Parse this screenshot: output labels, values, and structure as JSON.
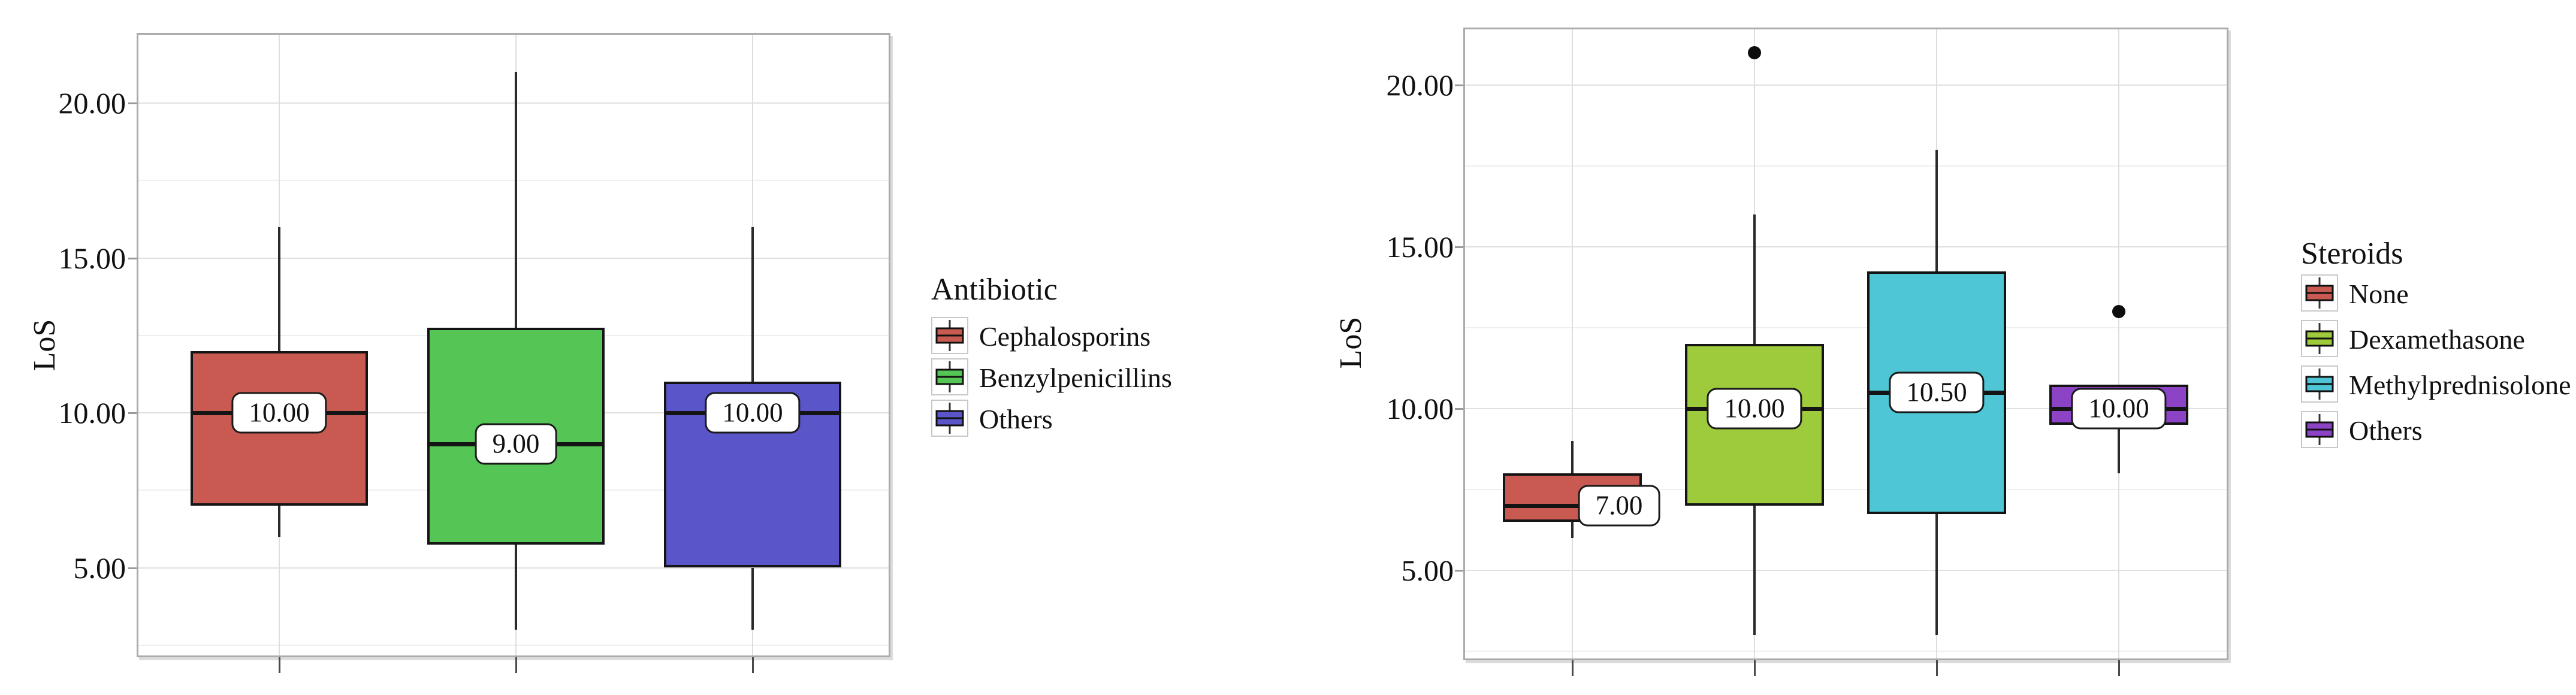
{
  "page": {
    "background": "#ffffff"
  },
  "chart_data": [
    {
      "type": "box",
      "id": "antibiotic",
      "title": "",
      "xlabel": "",
      "ylabel": "LoS",
      "ylim": [
        2.1,
        22.3
      ],
      "yticks": [
        5,
        10,
        15,
        20
      ],
      "ytick_labels": [
        "5.00",
        "10.00",
        "15.00",
        "20.00"
      ],
      "minor_grid_step": 2.5,
      "grid": true,
      "legend": {
        "title": "Antibiotic",
        "position": "right"
      },
      "categories": [
        "Cephalosporins",
        "Benzylpenicillins",
        "Others"
      ],
      "series": [
        {
          "name": "Cephalosporins",
          "color": "#c85a51",
          "whisker_low": 6,
          "q1": 7,
          "median": 10,
          "q3": 12,
          "whisker_high": 16,
          "outliers": [],
          "median_label": "10.00",
          "label_offset_x": 0
        },
        {
          "name": "Benzylpenicillins",
          "color": "#55c556",
          "whisker_low": 3,
          "q1": 5.75,
          "median": 9,
          "q3": 12.75,
          "whisker_high": 21,
          "outliers": [],
          "median_label": "9.00",
          "label_offset_x": 0
        },
        {
          "name": "Others",
          "color": "#5a55c8",
          "whisker_low": 3,
          "q1": 5,
          "median": 10,
          "q3": 11,
          "whisker_high": 16,
          "outliers": [],
          "median_label": "10.00",
          "label_offset_x": 0
        }
      ]
    },
    {
      "type": "box",
      "id": "steroids",
      "title": "",
      "xlabel": "",
      "ylabel": "LoS",
      "ylim": [
        2.2,
        21.9
      ],
      "yticks": [
        5,
        10,
        15,
        20
      ],
      "ytick_labels": [
        "5.00",
        "10.00",
        "15.00",
        "20.00"
      ],
      "minor_grid_step": 2.5,
      "grid": true,
      "legend": {
        "title": "Steroids",
        "position": "right"
      },
      "categories": [
        "None",
        "Dexamethasone",
        "Methylprednisolone",
        "Others"
      ],
      "series": [
        {
          "name": "None",
          "color": "#c85a51",
          "whisker_low": 6,
          "q1": 6.5,
          "median": 7,
          "q3": 8,
          "whisker_high": 9,
          "outliers": [],
          "median_label": "7.00",
          "label_offset_x": 78
        },
        {
          "name": "Dexamethasone",
          "color": "#9dcb3b",
          "whisker_low": 3,
          "q1": 7,
          "median": 10,
          "q3": 12,
          "whisker_high": 16,
          "outliers": [
            21
          ],
          "median_label": "10.00",
          "label_offset_x": 0
        },
        {
          "name": "Methylprednisolone",
          "color": "#4ec6d5",
          "whisker_low": 3,
          "q1": 6.75,
          "median": 10.5,
          "q3": 14.25,
          "whisker_high": 18,
          "outliers": [],
          "median_label": "10.50",
          "label_offset_x": 0
        },
        {
          "name": "Others",
          "color": "#8c43c6",
          "whisker_low": 8,
          "q1": 9.5,
          "median": 10,
          "q3": 10.75,
          "whisker_high": 10.75,
          "outliers": [
            13
          ],
          "median_label": "10.00",
          "label_offset_x": 0
        }
      ]
    }
  ]
}
